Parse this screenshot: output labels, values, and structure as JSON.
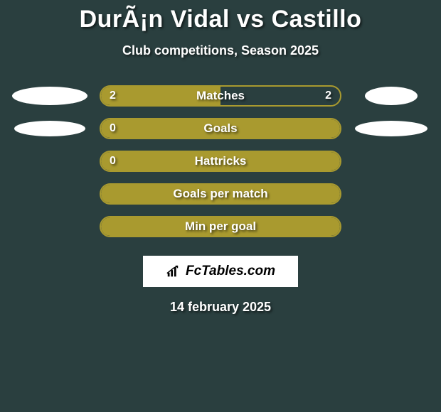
{
  "title": "DurÃ¡n Vidal vs Castillo",
  "subtitle": "Club competitions, Season 2025",
  "colors": {
    "background": "#2a3f3f",
    "bar_fill": "#a99a2f",
    "bar_border": "#a99a2f",
    "oval": "#ffffff",
    "text": "#ffffff",
    "logo_bg": "#ffffff",
    "logo_text": "#000000"
  },
  "rows": [
    {
      "label": "Matches",
      "left_value": "2",
      "right_value": "2",
      "fill_pct": 50,
      "show_left": true,
      "show_right": true,
      "left_oval": {
        "w": 106,
        "h": 26
      },
      "right_oval": {
        "w": 74,
        "h": 26
      }
    },
    {
      "label": "Goals",
      "left_value": "0",
      "right_value": "",
      "fill_pct": 100,
      "show_left": true,
      "show_right": false,
      "left_oval": {
        "w": 100,
        "h": 22
      },
      "right_oval": {
        "w": 102,
        "h": 22
      }
    },
    {
      "label": "Hattricks",
      "left_value": "0",
      "right_value": "",
      "fill_pct": 100,
      "show_left": true,
      "show_right": false,
      "left_oval": null,
      "right_oval": null
    },
    {
      "label": "Goals per match",
      "left_value": "",
      "right_value": "",
      "fill_pct": 100,
      "show_left": false,
      "show_right": false,
      "left_oval": null,
      "right_oval": null
    },
    {
      "label": "Min per goal",
      "left_value": "",
      "right_value": "",
      "fill_pct": 100,
      "show_left": false,
      "show_right": false,
      "left_oval": null,
      "right_oval": null
    }
  ],
  "logo_text": "FcTables.com",
  "date": "14 february 2025"
}
